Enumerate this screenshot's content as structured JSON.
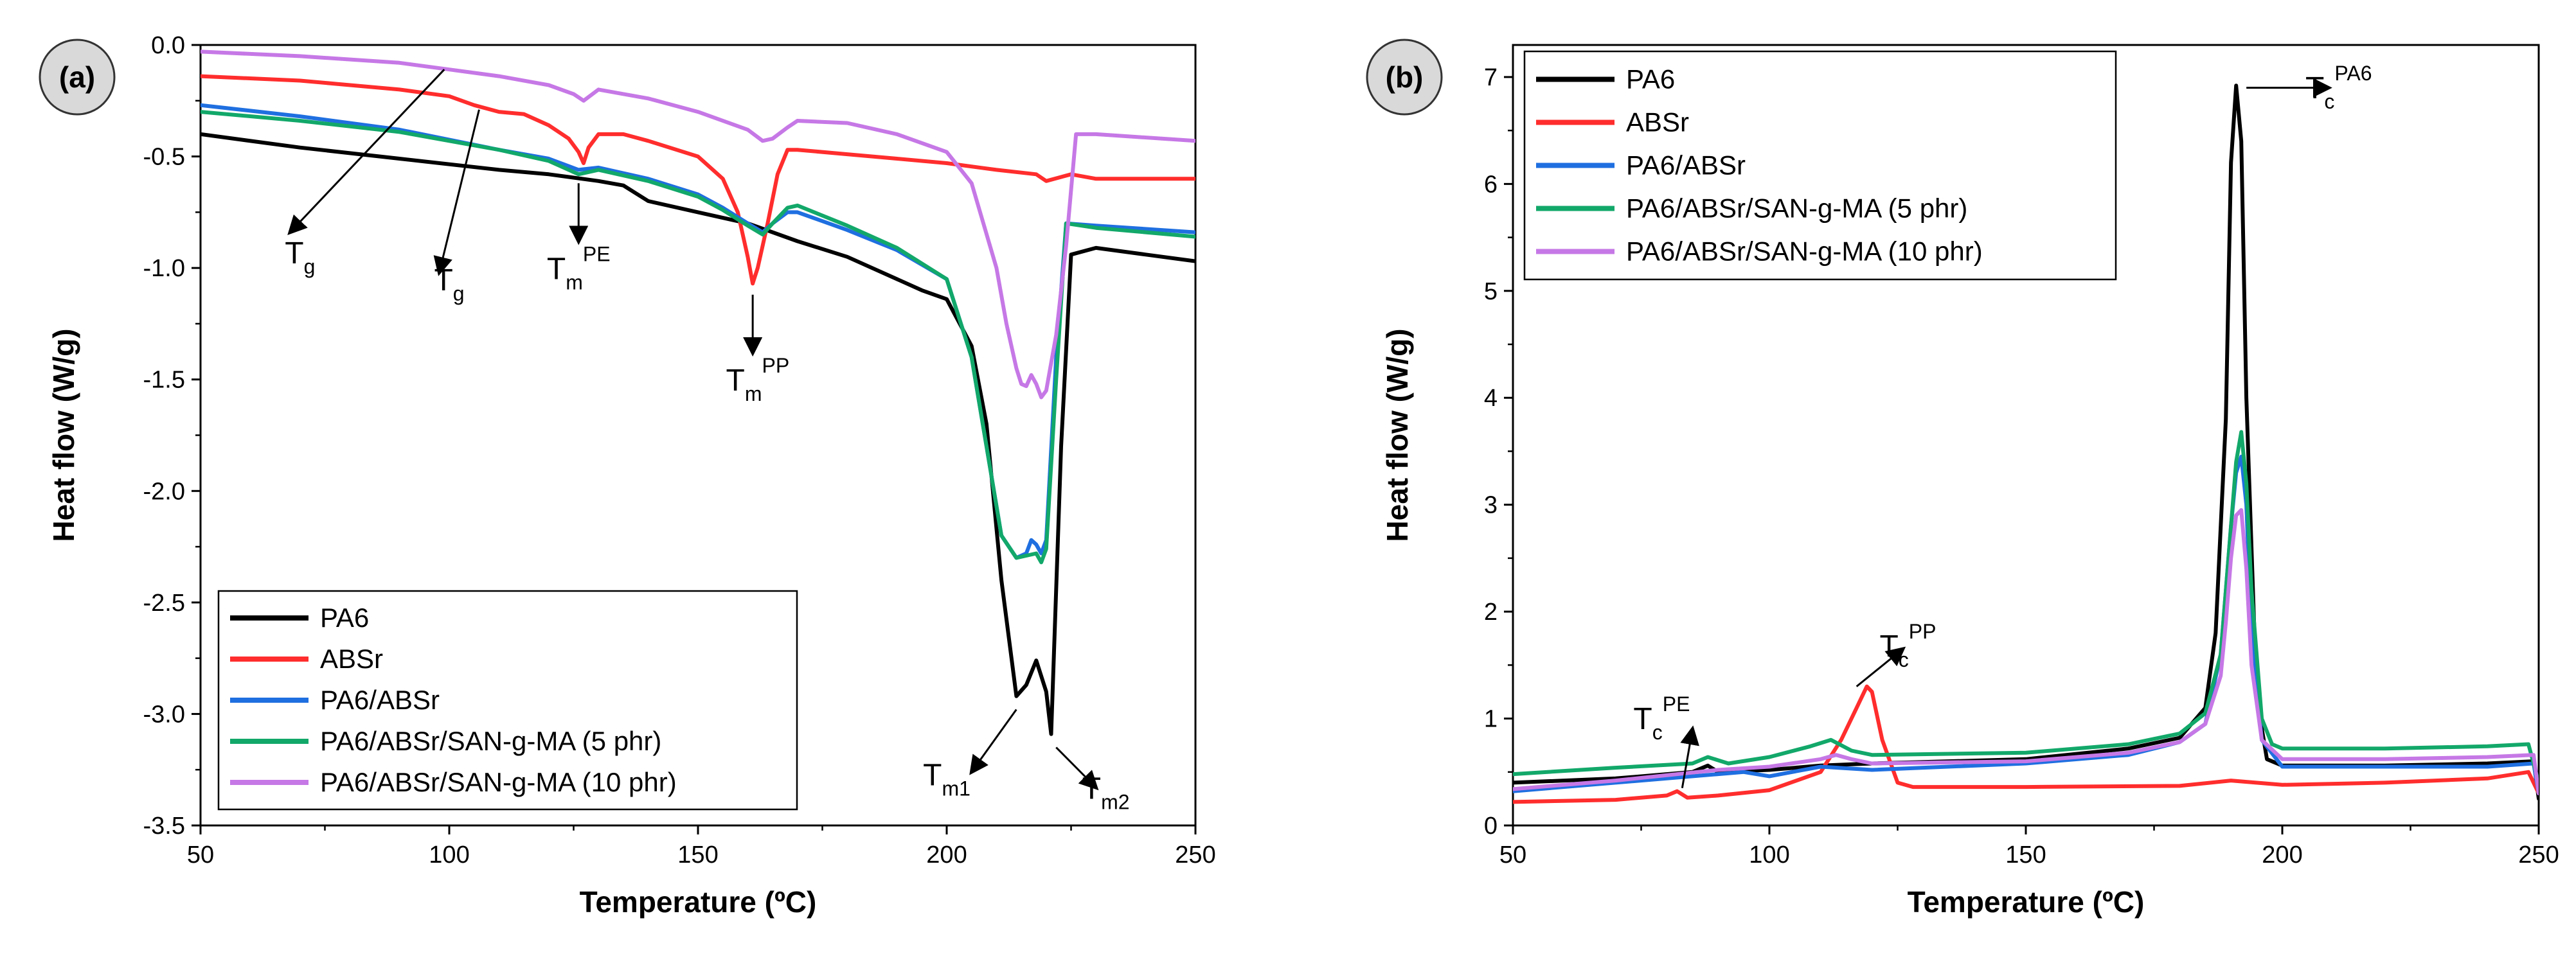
{
  "figure": {
    "panels": [
      {
        "id": "a",
        "label": "(a)"
      },
      {
        "id": "b",
        "label": "(b)"
      }
    ]
  },
  "colors": {
    "PA6": "#000000",
    "ABSr": "#ff2d2d",
    "PA6/ABSr": "#1f6fe0",
    "PA6/ABSr/SAN-g-MA (5 phr)": "#12a86a",
    "PA6/ABSr/SAN-g-MA (10 phr)": "#c678e6"
  },
  "chart_data": [
    {
      "panel": "a",
      "type": "line",
      "title": "",
      "xlabel": "Temperature (ºC)",
      "ylabel": "Heat flow (W/g)",
      "xlim": [
        50,
        250
      ],
      "ylim": [
        -3.5,
        0.0
      ],
      "xticks": [
        50,
        100,
        150,
        200,
        250
      ],
      "xtick_labels": [
        "50",
        "100",
        "150",
        "200",
        "250"
      ],
      "yticks": [
        0.0,
        -0.5,
        -1.0,
        -1.5,
        -2.0,
        -2.5,
        -3.0,
        -3.5
      ],
      "ytick_labels": [
        "0.0",
        "-0.5",
        "-1.0",
        "-1.5",
        "-2.0",
        "-2.5",
        "-3.0",
        "-3.5"
      ],
      "legend_position": "bottom-left",
      "series": [
        {
          "name": "PA6",
          "x": [
            50,
            70,
            90,
            110,
            120,
            130,
            135,
            140,
            150,
            160,
            170,
            180,
            190,
            195,
            200,
            205,
            208,
            211,
            214,
            216,
            218,
            220,
            221,
            223,
            225,
            230,
            240,
            250
          ],
          "y": [
            -0.4,
            -0.46,
            -0.51,
            -0.56,
            -0.58,
            -0.61,
            -0.63,
            -0.7,
            -0.75,
            -0.8,
            -0.88,
            -0.95,
            -1.05,
            -1.1,
            -1.14,
            -1.35,
            -1.7,
            -2.4,
            -2.92,
            -2.87,
            -2.76,
            -2.9,
            -3.09,
            -1.8,
            -0.94,
            -0.91,
            -0.94,
            -0.97
          ]
        },
        {
          "name": "ABSr",
          "x": [
            50,
            70,
            90,
            100,
            105,
            110,
            115,
            120,
            124,
            126,
            127,
            128,
            130,
            135,
            140,
            150,
            155,
            158,
            160,
            161,
            162,
            164,
            166,
            168,
            170,
            180,
            190,
            200,
            210,
            218,
            220,
            225,
            230,
            250
          ],
          "y": [
            -0.14,
            -0.16,
            -0.2,
            -0.23,
            -0.27,
            -0.3,
            -0.31,
            -0.36,
            -0.42,
            -0.48,
            -0.53,
            -0.46,
            -0.4,
            -0.4,
            -0.43,
            -0.5,
            -0.6,
            -0.75,
            -0.95,
            -1.07,
            -1.0,
            -0.8,
            -0.58,
            -0.47,
            -0.47,
            -0.49,
            -0.51,
            -0.53,
            -0.56,
            -0.58,
            -0.61,
            -0.58,
            -0.6,
            -0.6
          ]
        },
        {
          "name": "PA6/ABSr",
          "x": [
            50,
            70,
            90,
            110,
            120,
            126,
            130,
            140,
            150,
            155,
            160,
            163,
            165,
            168,
            170,
            180,
            190,
            200,
            205,
            208,
            211,
            214,
            216,
            217,
            218,
            219,
            220,
            222,
            224,
            230,
            250
          ],
          "y": [
            -0.27,
            -0.32,
            -0.38,
            -0.47,
            -0.51,
            -0.56,
            -0.55,
            -0.6,
            -0.67,
            -0.73,
            -0.8,
            -0.84,
            -0.8,
            -0.75,
            -0.75,
            -0.83,
            -0.92,
            -1.05,
            -1.4,
            -1.8,
            -2.2,
            -2.3,
            -2.28,
            -2.22,
            -2.24,
            -2.28,
            -2.22,
            -1.4,
            -0.8,
            -0.81,
            -0.84
          ]
        },
        {
          "name": "PA6/ABSr/SAN-g-MA (5 phr)",
          "x": [
            50,
            70,
            90,
            110,
            120,
            126,
            130,
            140,
            150,
            155,
            160,
            163,
            165,
            168,
            170,
            180,
            190,
            200,
            205,
            208,
            211,
            214,
            216,
            218,
            219,
            220,
            222,
            224,
            230,
            250
          ],
          "y": [
            -0.3,
            -0.34,
            -0.39,
            -0.47,
            -0.52,
            -0.58,
            -0.56,
            -0.61,
            -0.68,
            -0.74,
            -0.81,
            -0.85,
            -0.8,
            -0.73,
            -0.72,
            -0.81,
            -0.91,
            -1.05,
            -1.4,
            -1.8,
            -2.2,
            -2.3,
            -2.29,
            -2.28,
            -2.32,
            -2.26,
            -1.5,
            -0.8,
            -0.82,
            -0.86
          ]
        },
        {
          "name": "PA6/ABSr/SAN-g-MA (10 phr)",
          "x": [
            50,
            70,
            90,
            100,
            110,
            120,
            125,
            127,
            130,
            140,
            150,
            160,
            163,
            165,
            168,
            170,
            180,
            190,
            200,
            205,
            210,
            212,
            214,
            215,
            216,
            217,
            218,
            219,
            220,
            222,
            224,
            226,
            230,
            250
          ],
          "y": [
            -0.03,
            -0.05,
            -0.08,
            -0.11,
            -0.14,
            -0.18,
            -0.22,
            -0.25,
            -0.2,
            -0.24,
            -0.3,
            -0.38,
            -0.43,
            -0.42,
            -0.37,
            -0.34,
            -0.35,
            -0.4,
            -0.48,
            -0.62,
            -1.0,
            -1.25,
            -1.45,
            -1.52,
            -1.53,
            -1.48,
            -1.52,
            -1.58,
            -1.55,
            -1.3,
            -0.9,
            -0.4,
            -0.4,
            -0.43
          ]
        }
      ],
      "annotations": [
        {
          "id": "tg1",
          "base": "T",
          "sub": "g",
          "sup": "",
          "arrow_from": [
            99,
            -0.11
          ],
          "arrow_to": [
            68,
            -0.84
          ],
          "label_at": [
            70,
            -0.98
          ]
        },
        {
          "id": "tg2",
          "base": "T",
          "sub": "g",
          "sup": "",
          "arrow_from": [
            106,
            -0.29
          ],
          "arrow_to": [
            98,
            -1.02
          ],
          "label_at": [
            100,
            -1.1
          ]
        },
        {
          "id": "tmpe",
          "base": "T",
          "sub": "m",
          "sup": "PE",
          "arrow_from": [
            126,
            -0.62
          ],
          "arrow_to": [
            126,
            -0.88
          ],
          "label_at": [
            126,
            -1.05
          ]
        },
        {
          "id": "tmpp",
          "base": "T",
          "sub": "m",
          "sup": "PP",
          "arrow_from": [
            161,
            -1.12
          ],
          "arrow_to": [
            161,
            -1.38
          ],
          "label_at": [
            162,
            -1.55
          ]
        },
        {
          "id": "tm1",
          "base": "T",
          "sub": "m1",
          "sup": "",
          "arrow_from": [
            214,
            -2.98
          ],
          "arrow_to": [
            205,
            -3.26
          ],
          "label_at": [
            200,
            -3.32
          ]
        },
        {
          "id": "tm2",
          "base": "T",
          "sub": "m2",
          "sup": "",
          "arrow_from": [
            222,
            -3.15
          ],
          "arrow_to": [
            230,
            -3.33
          ],
          "label_at": [
            232,
            -3.38
          ]
        }
      ]
    },
    {
      "panel": "b",
      "type": "line",
      "title": "",
      "xlabel": "Temperature (ºC)",
      "ylabel": "Heat flow (W/g)",
      "xlim": [
        50,
        250
      ],
      "ylim": [
        0,
        7.3
      ],
      "xticks": [
        50,
        100,
        150,
        200,
        250
      ],
      "xtick_labels": [
        "50",
        "100",
        "150",
        "200",
        "250"
      ],
      "yticks": [
        0,
        1,
        2,
        3,
        4,
        5,
        6,
        7
      ],
      "ytick_labels": [
        "0",
        "1",
        "2",
        "3",
        "4",
        "5",
        "6",
        "7"
      ],
      "legend_position": "top-left",
      "series": [
        {
          "name": "PA6",
          "x": [
            50,
            70,
            85,
            88,
            90,
            100,
            110,
            120,
            150,
            170,
            180,
            185,
            187,
            189,
            190,
            191,
            192,
            193,
            195,
            197,
            200,
            220,
            240,
            249,
            250
          ],
          "y": [
            0.4,
            0.44,
            0.5,
            0.56,
            0.5,
            0.52,
            0.56,
            0.58,
            0.62,
            0.72,
            0.82,
            1.1,
            1.8,
            3.8,
            6.2,
            6.92,
            6.4,
            4.0,
            1.2,
            0.62,
            0.56,
            0.56,
            0.58,
            0.6,
            0.25
          ]
        },
        {
          "name": "ABSr",
          "x": [
            50,
            70,
            80,
            82,
            84,
            90,
            100,
            110,
            114,
            117,
            119,
            120,
            122,
            125,
            128,
            150,
            180,
            190,
            200,
            220,
            240,
            248,
            250
          ],
          "y": [
            0.22,
            0.24,
            0.28,
            0.32,
            0.26,
            0.28,
            0.33,
            0.5,
            0.8,
            1.1,
            1.3,
            1.25,
            0.8,
            0.4,
            0.36,
            0.36,
            0.37,
            0.42,
            0.38,
            0.4,
            0.44,
            0.5,
            0.3
          ]
        },
        {
          "name": "PA6/ABSr",
          "x": [
            50,
            70,
            90,
            95,
            100,
            110,
            120,
            150,
            170,
            180,
            185,
            188,
            190,
            191,
            192,
            193,
            194,
            196,
            200,
            220,
            240,
            249,
            250
          ],
          "y": [
            0.32,
            0.4,
            0.48,
            0.5,
            0.46,
            0.55,
            0.52,
            0.58,
            0.66,
            0.78,
            0.95,
            1.6,
            2.8,
            3.3,
            3.45,
            3.0,
            1.8,
            0.8,
            0.55,
            0.55,
            0.55,
            0.58,
            0.3
          ]
        },
        {
          "name": "PA6/ABSr/SAN-g-MA (5 phr)",
          "x": [
            50,
            70,
            85,
            88,
            92,
            100,
            108,
            112,
            116,
            120,
            150,
            170,
            180,
            185,
            188,
            190,
            191,
            192,
            193,
            194,
            196,
            198,
            200,
            220,
            240,
            248,
            250
          ],
          "y": [
            0.48,
            0.54,
            0.58,
            0.64,
            0.58,
            0.64,
            0.74,
            0.8,
            0.7,
            0.66,
            0.68,
            0.76,
            0.86,
            1.05,
            1.6,
            2.8,
            3.4,
            3.68,
            3.2,
            2.2,
            1.0,
            0.76,
            0.72,
            0.72,
            0.74,
            0.76,
            0.4
          ]
        },
        {
          "name": "PA6/ABSr/SAN-g-MA (10 phr)",
          "x": [
            50,
            70,
            90,
            100,
            110,
            113,
            116,
            120,
            150,
            170,
            180,
            185,
            188,
            189,
            190,
            191,
            192,
            193,
            194,
            196,
            200,
            220,
            240,
            249,
            250
          ],
          "y": [
            0.34,
            0.42,
            0.52,
            0.55,
            0.62,
            0.66,
            0.62,
            0.58,
            0.6,
            0.68,
            0.78,
            0.95,
            1.4,
            1.9,
            2.5,
            2.9,
            2.95,
            2.4,
            1.5,
            0.8,
            0.62,
            0.62,
            0.64,
            0.66,
            0.3
          ]
        }
      ],
      "annotations": [
        {
          "id": "tcpa6",
          "base": "T",
          "sub": "c",
          "sup": "PA6",
          "arrow_from": [
            193,
            6.9
          ],
          "arrow_to": [
            209,
            6.9
          ],
          "label_at": [
            211,
            6.8
          ]
        },
        {
          "id": "tcpp",
          "base": "T",
          "sub": "c",
          "sup": "PP",
          "arrow_from": [
            117,
            1.3
          ],
          "arrow_to": [
            126,
            1.65
          ],
          "label_at": [
            127,
            1.58
          ]
        },
        {
          "id": "tcpe",
          "base": "T",
          "sub": "c",
          "sup": "PE",
          "arrow_from": [
            83,
            0.35
          ],
          "arrow_to": [
            85,
            0.9
          ],
          "label_at": [
            79,
            0.9
          ]
        }
      ]
    }
  ]
}
